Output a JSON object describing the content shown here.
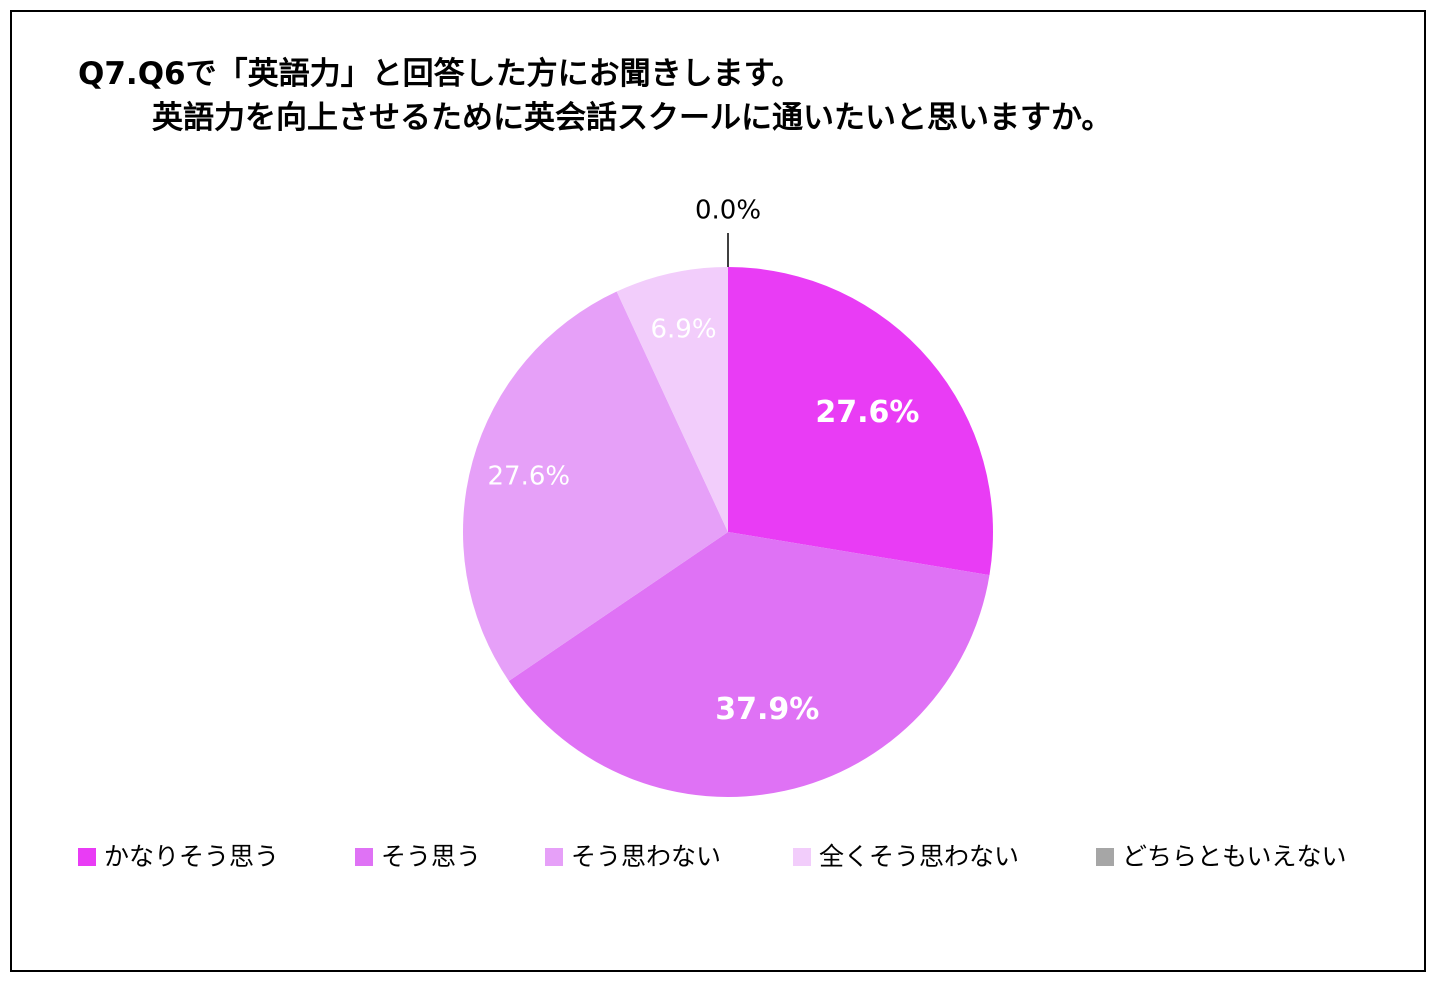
{
  "title": {
    "line1": "Q7.Q6で「英語力」と回答した方にお聞きします。",
    "line2": "英語力を向上させるために英会話スクールに通いたいと思いますか。"
  },
  "chart_data": {
    "type": "pie",
    "start_angle_deg": 0,
    "direction": "clockwise",
    "slices": [
      {
        "label": "かなりそう思う",
        "value": 27.6,
        "display": "27.6%",
        "color": "#e93cf5",
        "label_color": "#ffffff",
        "label_bold": true
      },
      {
        "label": "そう思う",
        "value": 37.9,
        "display": "37.9%",
        "color": "#df72f5",
        "label_color": "#ffffff",
        "label_bold": true
      },
      {
        "label": "そう思わない",
        "value": 27.6,
        "display": "27.6%",
        "color": "#e6a0f8",
        "label_color": "#ffffff",
        "label_bold": false
      },
      {
        "label": "全くそう思わない",
        "value": 6.9,
        "display": "6.9%",
        "color": "#f2cdfb",
        "label_color": "#ffffff",
        "label_bold": false
      },
      {
        "label": "どちらともいえない",
        "value": 0.0,
        "display": "0.0%",
        "color": "#a6a6a6",
        "label_color": "#000000",
        "label_bold": false,
        "leader_line": true
      }
    ],
    "legend_position": "bottom"
  }
}
